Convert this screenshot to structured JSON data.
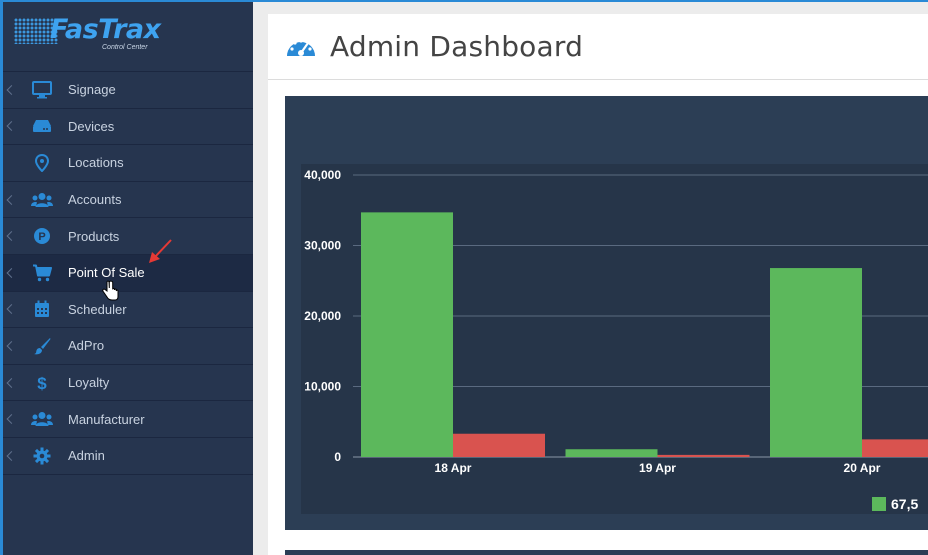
{
  "app": {
    "logo_text": "FasTrax",
    "logo_subtext": "Control Center"
  },
  "sidebar": {
    "items": [
      {
        "label": "Signage",
        "icon": "monitor-icon",
        "has_chevron": true
      },
      {
        "label": "Devices",
        "icon": "server-icon",
        "has_chevron": true
      },
      {
        "label": "Locations",
        "icon": "map-pin-icon",
        "has_chevron": false
      },
      {
        "label": "Accounts",
        "icon": "users-icon",
        "has_chevron": true
      },
      {
        "label": "Products",
        "icon": "parking-p-icon",
        "has_chevron": true
      },
      {
        "label": "Point Of Sale",
        "icon": "shopping-cart-icon",
        "has_chevron": true,
        "active": true
      },
      {
        "label": "Scheduler",
        "icon": "calendar-icon",
        "has_chevron": true
      },
      {
        "label": "AdPro",
        "icon": "paintbrush-icon",
        "has_chevron": true
      },
      {
        "label": "Loyalty",
        "icon": "dollar-icon",
        "has_chevron": true
      },
      {
        "label": "Manufacturer",
        "icon": "users-icon",
        "has_chevron": true
      },
      {
        "label": "Admin",
        "icon": "gear-icon",
        "has_chevron": true
      }
    ]
  },
  "main": {
    "title": "Admin Dashboard",
    "title_icon": "dashboard-gauge-icon"
  },
  "colors": {
    "sidebar_bg": "#26354f",
    "accent": "#3ea3f0",
    "chart_bg": "#2c3e55",
    "series_green": "#5cb85c",
    "series_red": "#d9534f"
  },
  "chart_data": {
    "type": "bar",
    "categories": [
      "18 Apr",
      "19 Apr",
      "20 Apr"
    ],
    "series": [
      {
        "values": [
          34700,
          1100,
          26800
        ],
        "color": "#5cb85c"
      },
      {
        "values": [
          3300,
          300,
          2500
        ],
        "color": "#d9534f"
      }
    ],
    "ylim": [
      0,
      40000
    ],
    "yticks": [
      "0",
      "10,000",
      "20,000",
      "30,000",
      "40,000"
    ],
    "grid": true,
    "legend_partial_text": "67,5"
  }
}
